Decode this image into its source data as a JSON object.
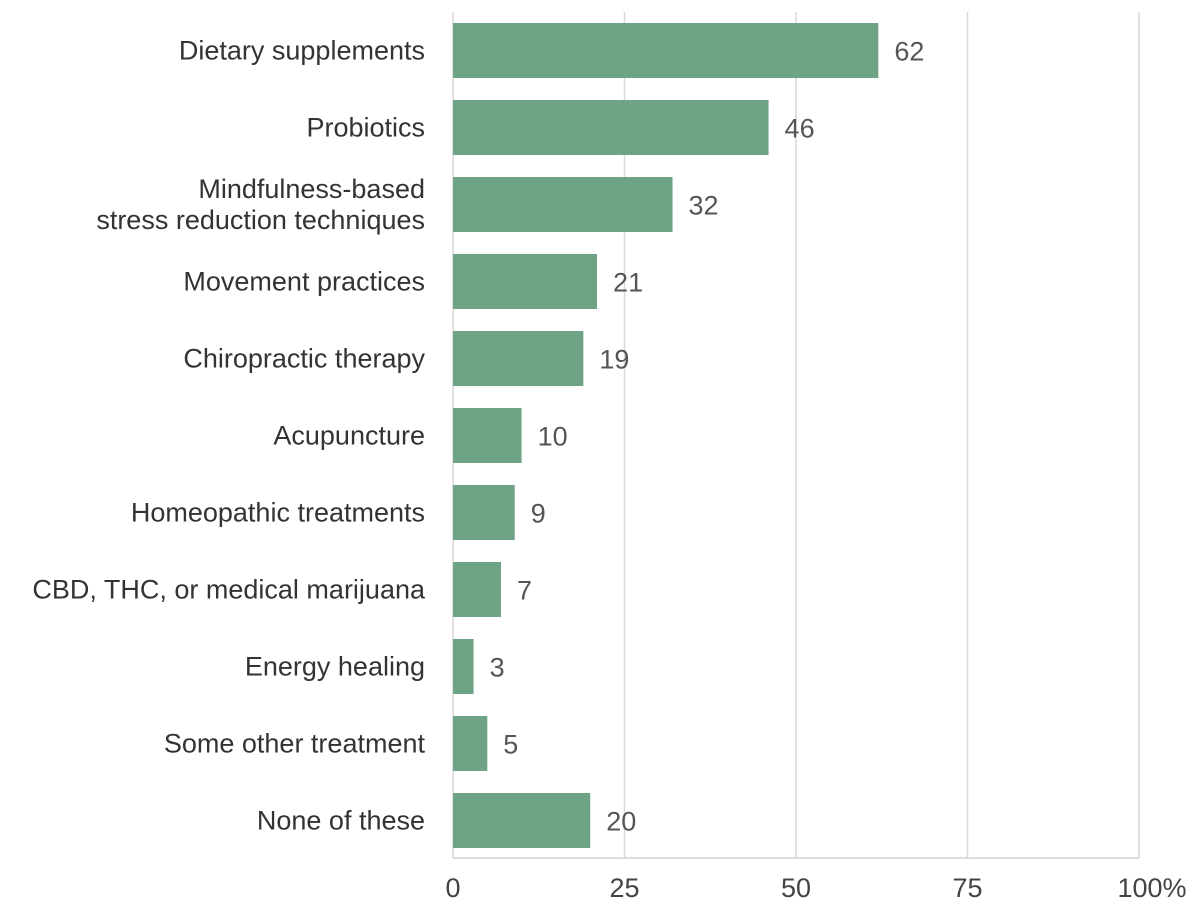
{
  "chart_data": {
    "type": "bar",
    "orientation": "horizontal",
    "categories": [
      [
        "Dietary supplements"
      ],
      [
        "Probiotics"
      ],
      [
        "Mindfulness-based",
        "stress reduction techniques"
      ],
      [
        "Movement practices"
      ],
      [
        "Chiropractic therapy"
      ],
      [
        "Acupuncture"
      ],
      [
        "Homeopathic treatments"
      ],
      [
        "CBD, THC, or medical marijuana"
      ],
      [
        "Energy healing"
      ],
      [
        "Some other treatment"
      ],
      [
        "None of these"
      ]
    ],
    "values": [
      62,
      46,
      32,
      21,
      19,
      10,
      9,
      7,
      3,
      5,
      20
    ],
    "data_labels": [
      "62",
      "46",
      "32",
      "21",
      "19",
      "10",
      "9",
      "7",
      "3",
      "5",
      "20"
    ],
    "xlim": [
      0,
      100
    ],
    "x_ticks": [
      0,
      25,
      50,
      75,
      100
    ],
    "x_tick_labels": [
      "0",
      "25",
      "50",
      "75",
      "100%"
    ],
    "grid": true,
    "legend": "none",
    "bar_color": "#6fa386",
    "title": "",
    "xlabel": "",
    "ylabel": ""
  }
}
